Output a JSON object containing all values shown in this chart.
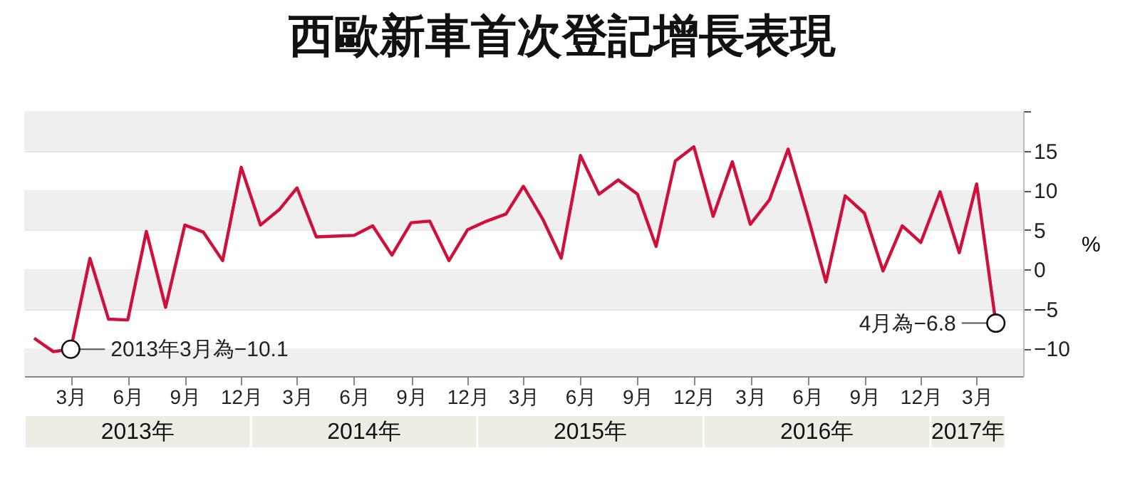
{
  "chart_data": {
    "type": "line",
    "title": "西歐新車首次登記增長表現",
    "ylabel": "%",
    "x": [
      "2013-01",
      "2013-02",
      "2013-03",
      "2013-04",
      "2013-05",
      "2013-06",
      "2013-07",
      "2013-08",
      "2013-09",
      "2013-10",
      "2013-11",
      "2013-12",
      "2014-01",
      "2014-02",
      "2014-03",
      "2014-04",
      "2014-05",
      "2014-06",
      "2014-07",
      "2014-08",
      "2014-09",
      "2014-10",
      "2014-11",
      "2014-12",
      "2015-01",
      "2015-02",
      "2015-03",
      "2015-04",
      "2015-05",
      "2015-06",
      "2015-07",
      "2015-08",
      "2015-09",
      "2015-10",
      "2015-11",
      "2015-12",
      "2016-01",
      "2016-02",
      "2016-03",
      "2016-04",
      "2016-05",
      "2016-06",
      "2016-07",
      "2016-08",
      "2016-09",
      "2016-10",
      "2016-11",
      "2016-12",
      "2017-01",
      "2017-02",
      "2017-03",
      "2017-04"
    ],
    "series": [
      {
        "color": "#d0103a",
        "values": [
          -8.7,
          -10.4,
          -10.1,
          1.4,
          -6.3,
          -6.4,
          4.8,
          -4.8,
          5.6,
          4.7,
          1.1,
          12.9,
          5.6,
          7.6,
          10.3,
          4.1,
          4.2,
          4.3,
          5.5,
          1.8,
          5.9,
          6.1,
          1.1,
          5.0,
          6.1,
          7.0,
          10.5,
          6.4,
          1.4,
          14.4,
          9.5,
          11.3,
          9.5,
          2.9,
          13.7,
          15.5,
          6.7,
          13.6,
          5.7,
          8.8,
          15.2,
          6.9,
          -1.6,
          9.3,
          7.1,
          -0.2,
          5.5,
          3.4,
          9.8,
          2.1,
          10.8,
          -6.8
        ]
      }
    ],
    "ylim": [
      -13.5,
      20
    ],
    "yticks": [
      {
        "value": -10,
        "label": "−10"
      },
      {
        "value": -5,
        "label": "−5"
      },
      0,
      5,
      10,
      15,
      {
        "value": 20,
        "label": null
      }
    ],
    "xlim": [
      "2012-12-16",
      "2017-05-15"
    ],
    "xticks": [
      {
        "value": "2013-03",
        "label": "3月"
      },
      {
        "value": "2013-06",
        "label": "6月"
      },
      {
        "value": "2013-09",
        "label": "9月"
      },
      {
        "value": "2013-12",
        "label": "12月"
      },
      {
        "value": "2014-03",
        "label": "3月"
      },
      {
        "value": "2014-06",
        "label": "6月"
      },
      {
        "value": "2014-09",
        "label": "9月"
      },
      {
        "value": "2014-12",
        "label": "12月"
      },
      {
        "value": "2015-03",
        "label": "3月"
      },
      {
        "value": "2015-06",
        "label": "6月"
      },
      {
        "value": "2015-09",
        "label": "9月"
      },
      {
        "value": "2015-12",
        "label": "12月"
      },
      {
        "value": "2016-03",
        "label": "3月"
      },
      {
        "value": "2016-06",
        "label": "6月"
      },
      {
        "value": "2016-09",
        "label": "9月"
      },
      {
        "value": "2016-12",
        "label": "12月"
      },
      {
        "value": "2017-03",
        "label": "3月"
      }
    ],
    "annotations": [
      "2013年",
      "2014年",
      "2015年",
      "2016年",
      "2017年",
      {
        "text": "2013年3月為−10.1",
        "x": "2013-03",
        "y": -10.1
      },
      {
        "text": "4月為−6.8",
        "x": "2017-04",
        "y": -6.8
      }
    ],
    "grid": "y",
    "marker": "none",
    "line_style": "solid"
  }
}
